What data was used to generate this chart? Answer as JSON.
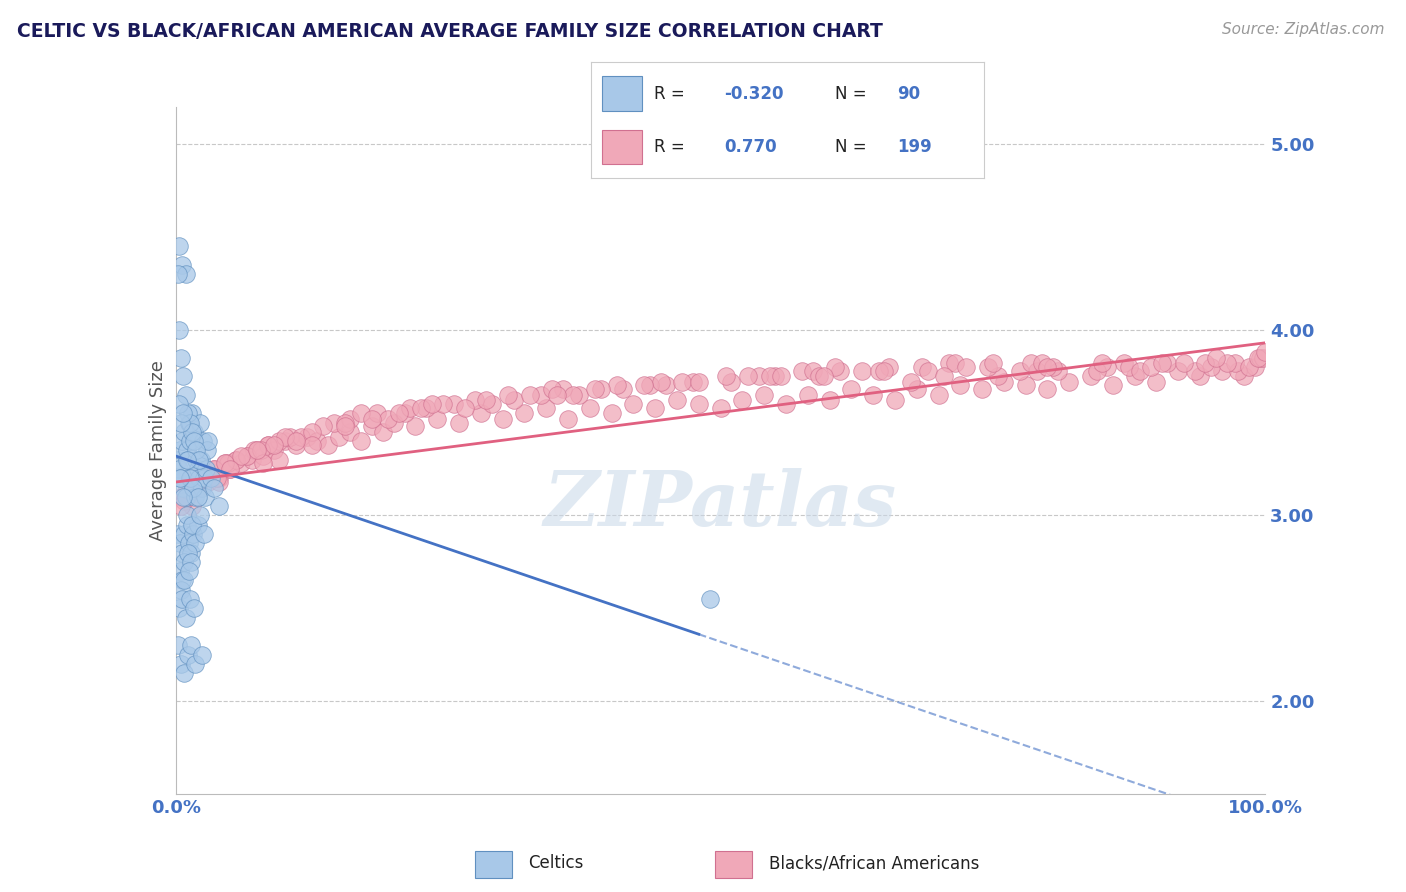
{
  "title": "CELTIC VS BLACK/AFRICAN AMERICAN AVERAGE FAMILY SIZE CORRELATION CHART",
  "source": "Source: ZipAtlas.com",
  "ylabel": "Average Family Size",
  "xlim": [
    0,
    100
  ],
  "ylim": [
    1.5,
    5.2
  ],
  "yticks": [
    2.0,
    3.0,
    4.0,
    5.0
  ],
  "xtick_labels": [
    "0.0%",
    "100.0%"
  ],
  "background_color": "#ffffff",
  "watermark": "ZIPatlas",
  "watermark_color": "#c8d8e8",
  "grid_color": "#c8c8c8",
  "celtic_color": "#a8c8e8",
  "celtic_edge_color": "#6090c0",
  "black_color": "#f0a8b8",
  "black_edge_color": "#d07090",
  "blue_line_color": "#4472c4",
  "pink_line_color": "#e06080",
  "title_color": "#1a1a5a",
  "axis_label_color": "#555555",
  "tick_color": "#4472c4",
  "celtic_line_intercept": 3.32,
  "celtic_line_slope": -0.02,
  "black_line_intercept": 3.18,
  "black_line_slope": 0.0075,
  "celtic_solid_end": 48,
  "celtic_x": [
    0.2,
    0.3,
    0.4,
    0.5,
    0.6,
    0.7,
    0.8,
    0.9,
    1.0,
    1.1,
    1.2,
    1.3,
    1.4,
    1.5,
    1.6,
    1.7,
    1.8,
    1.9,
    2.0,
    2.1,
    2.2,
    2.3,
    2.4,
    2.5,
    2.6,
    2.7,
    2.8,
    2.9,
    3.0,
    3.2,
    0.3,
    0.5,
    0.7,
    0.9,
    1.1,
    1.3,
    1.5,
    1.7,
    1.9,
    2.1,
    0.2,
    0.4,
    0.6,
    0.8,
    1.0,
    1.2,
    1.4,
    1.6,
    1.8,
    2.0,
    0.3,
    0.5,
    0.7,
    1.0,
    1.3,
    1.6,
    2.0,
    0.4,
    0.6,
    0.8,
    1.1,
    1.4,
    0.5,
    0.8,
    1.2,
    0.3,
    0.6,
    0.9,
    1.3,
    1.7,
    0.4,
    0.7,
    1.0,
    1.5,
    2.2,
    2.6,
    3.5,
    4.0,
    0.2,
    0.5,
    0.8,
    1.1,
    1.4,
    1.8,
    2.4,
    0.3,
    0.6,
    0.9,
    49.0,
    0.2
  ],
  "celtic_y": [
    3.3,
    3.25,
    3.35,
    3.2,
    3.4,
    3.15,
    3.45,
    3.1,
    3.35,
    3.3,
    3.5,
    3.4,
    3.2,
    3.55,
    3.15,
    3.45,
    3.1,
    3.3,
    3.25,
    3.2,
    3.5,
    3.3,
    3.15,
    3.4,
    3.2,
    3.1,
    3.25,
    3.35,
    3.4,
    3.2,
    4.0,
    3.85,
    3.75,
    3.65,
    3.55,
    3.5,
    3.45,
    3.4,
    3.35,
    3.3,
    2.9,
    2.85,
    2.8,
    2.9,
    2.95,
    2.85,
    2.8,
    2.9,
    2.85,
    2.95,
    3.6,
    3.5,
    3.55,
    3.3,
    3.2,
    3.15,
    3.1,
    2.7,
    2.65,
    2.75,
    2.8,
    2.75,
    2.6,
    2.65,
    2.7,
    2.5,
    2.55,
    2.45,
    2.55,
    2.5,
    3.2,
    3.1,
    3.0,
    2.95,
    3.0,
    2.9,
    3.15,
    3.05,
    2.3,
    2.2,
    2.15,
    2.25,
    2.3,
    2.2,
    2.25,
    4.45,
    4.35,
    4.3,
    2.55,
    4.3
  ],
  "black_x": [
    0.5,
    1.0,
    1.5,
    2.0,
    2.5,
    3.0,
    3.5,
    4.0,
    4.5,
    5.0,
    5.5,
    6.0,
    6.5,
    7.0,
    7.5,
    8.0,
    8.5,
    9.0,
    9.5,
    10.0,
    11.0,
    12.0,
    13.0,
    14.0,
    15.0,
    16.0,
    17.0,
    18.0,
    19.0,
    20.0,
    22.0,
    24.0,
    26.0,
    28.0,
    30.0,
    32.0,
    34.0,
    36.0,
    38.0,
    40.0,
    42.0,
    44.0,
    46.0,
    48.0,
    50.0,
    52.0,
    54.0,
    56.0,
    58.0,
    60.0,
    62.0,
    64.0,
    66.0,
    68.0,
    70.0,
    72.0,
    74.0,
    76.0,
    78.0,
    80.0,
    82.0,
    84.0,
    86.0,
    88.0,
    90.0,
    92.0,
    94.0,
    96.0,
    98.0,
    99.0,
    1.2,
    2.8,
    4.8,
    7.2,
    10.5,
    14.5,
    21.0,
    29.0,
    37.0,
    45.0,
    55.0,
    63.0,
    71.0,
    79.0,
    87.0,
    95.0,
    1.8,
    5.5,
    9.5,
    16.0,
    23.0,
    31.0,
    41.0,
    51.0,
    61.0,
    71.5,
    81.0,
    91.0,
    97.5,
    2.5,
    6.5,
    11.5,
    18.5,
    25.5,
    33.5,
    43.5,
    53.5,
    65.5,
    75.5,
    85.5,
    93.5,
    3.5,
    8.5,
    13.5,
    21.5,
    27.5,
    35.5,
    47.5,
    57.5,
    67.5,
    77.5,
    87.5,
    97.2,
    4.5,
    12.5,
    22.5,
    32.5,
    44.5,
    54.5,
    64.5,
    74.5,
    84.5,
    94.5,
    2.2,
    7.8,
    15.5,
    24.5,
    34.5,
    46.5,
    58.5,
    68.5,
    78.5,
    88.5,
    98.5,
    99.5,
    1.5,
    4.0,
    8.0,
    12.5,
    19.5,
    26.5,
    36.5,
    48.0,
    59.0,
    69.0,
    79.5,
    89.5,
    3.0,
    6.0,
    10.0,
    17.0,
    23.5,
    30.5,
    40.5,
    50.5,
    60.5,
    70.5,
    80.5,
    90.5,
    99.8,
    1.0,
    9.0,
    20.5,
    39.0,
    59.5,
    80.0,
    96.5,
    0.8,
    2.0,
    5.0,
    15.5,
    35.0,
    55.5,
    75.0,
    95.5,
    0.5,
    3.8,
    7.5,
    18.0,
    28.5,
    38.5,
    52.5,
    72.5,
    92.5,
    99.3,
    11.0,
    43.0,
    65.0,
    85.0,
    100.0
  ],
  "black_y": [
    3.1,
    3.15,
    3.2,
    3.18,
    3.22,
    3.18,
    3.25,
    3.2,
    3.28,
    3.25,
    3.3,
    3.28,
    3.32,
    3.3,
    3.35,
    3.32,
    3.38,
    3.35,
    3.3,
    3.4,
    3.38,
    3.42,
    3.4,
    3.38,
    3.42,
    3.45,
    3.4,
    3.48,
    3.45,
    3.5,
    3.48,
    3.52,
    3.5,
    3.55,
    3.52,
    3.55,
    3.58,
    3.52,
    3.58,
    3.55,
    3.6,
    3.58,
    3.62,
    3.6,
    3.58,
    3.62,
    3.65,
    3.6,
    3.65,
    3.62,
    3.68,
    3.65,
    3.62,
    3.68,
    3.65,
    3.7,
    3.68,
    3.72,
    3.7,
    3.68,
    3.72,
    3.75,
    3.7,
    3.75,
    3.72,
    3.78,
    3.75,
    3.78,
    3.75,
    3.8,
    3.12,
    3.2,
    3.28,
    3.35,
    3.42,
    3.5,
    3.55,
    3.6,
    3.65,
    3.7,
    3.75,
    3.78,
    3.82,
    3.78,
    3.82,
    3.8,
    3.18,
    3.3,
    3.4,
    3.52,
    3.58,
    3.62,
    3.68,
    3.72,
    3.78,
    3.82,
    3.78,
    3.82,
    3.78,
    3.22,
    3.32,
    3.42,
    3.55,
    3.6,
    3.65,
    3.7,
    3.75,
    3.8,
    3.75,
    3.8,
    3.78,
    3.25,
    3.38,
    3.48,
    3.58,
    3.62,
    3.68,
    3.72,
    3.78,
    3.72,
    3.78,
    3.8,
    3.82,
    3.28,
    3.45,
    3.58,
    3.65,
    3.72,
    3.75,
    3.78,
    3.8,
    3.78,
    3.82,
    3.15,
    3.35,
    3.5,
    3.6,
    3.68,
    3.72,
    3.78,
    3.8,
    3.82,
    3.78,
    3.8,
    3.85,
    3.05,
    3.18,
    3.28,
    3.38,
    3.52,
    3.58,
    3.65,
    3.72,
    3.75,
    3.78,
    3.82,
    3.8,
    3.22,
    3.32,
    3.42,
    3.55,
    3.6,
    3.65,
    3.7,
    3.75,
    3.8,
    3.75,
    3.8,
    3.82,
    3.85,
    3.1,
    3.38,
    3.55,
    3.68,
    3.75,
    3.8,
    3.82,
    3.08,
    3.15,
    3.25,
    3.48,
    3.65,
    3.75,
    3.82,
    3.85,
    3.05,
    3.2,
    3.35,
    3.52,
    3.62,
    3.68,
    3.75,
    3.8,
    3.82,
    3.85,
    3.4,
    3.7,
    3.78,
    3.82,
    3.88
  ]
}
